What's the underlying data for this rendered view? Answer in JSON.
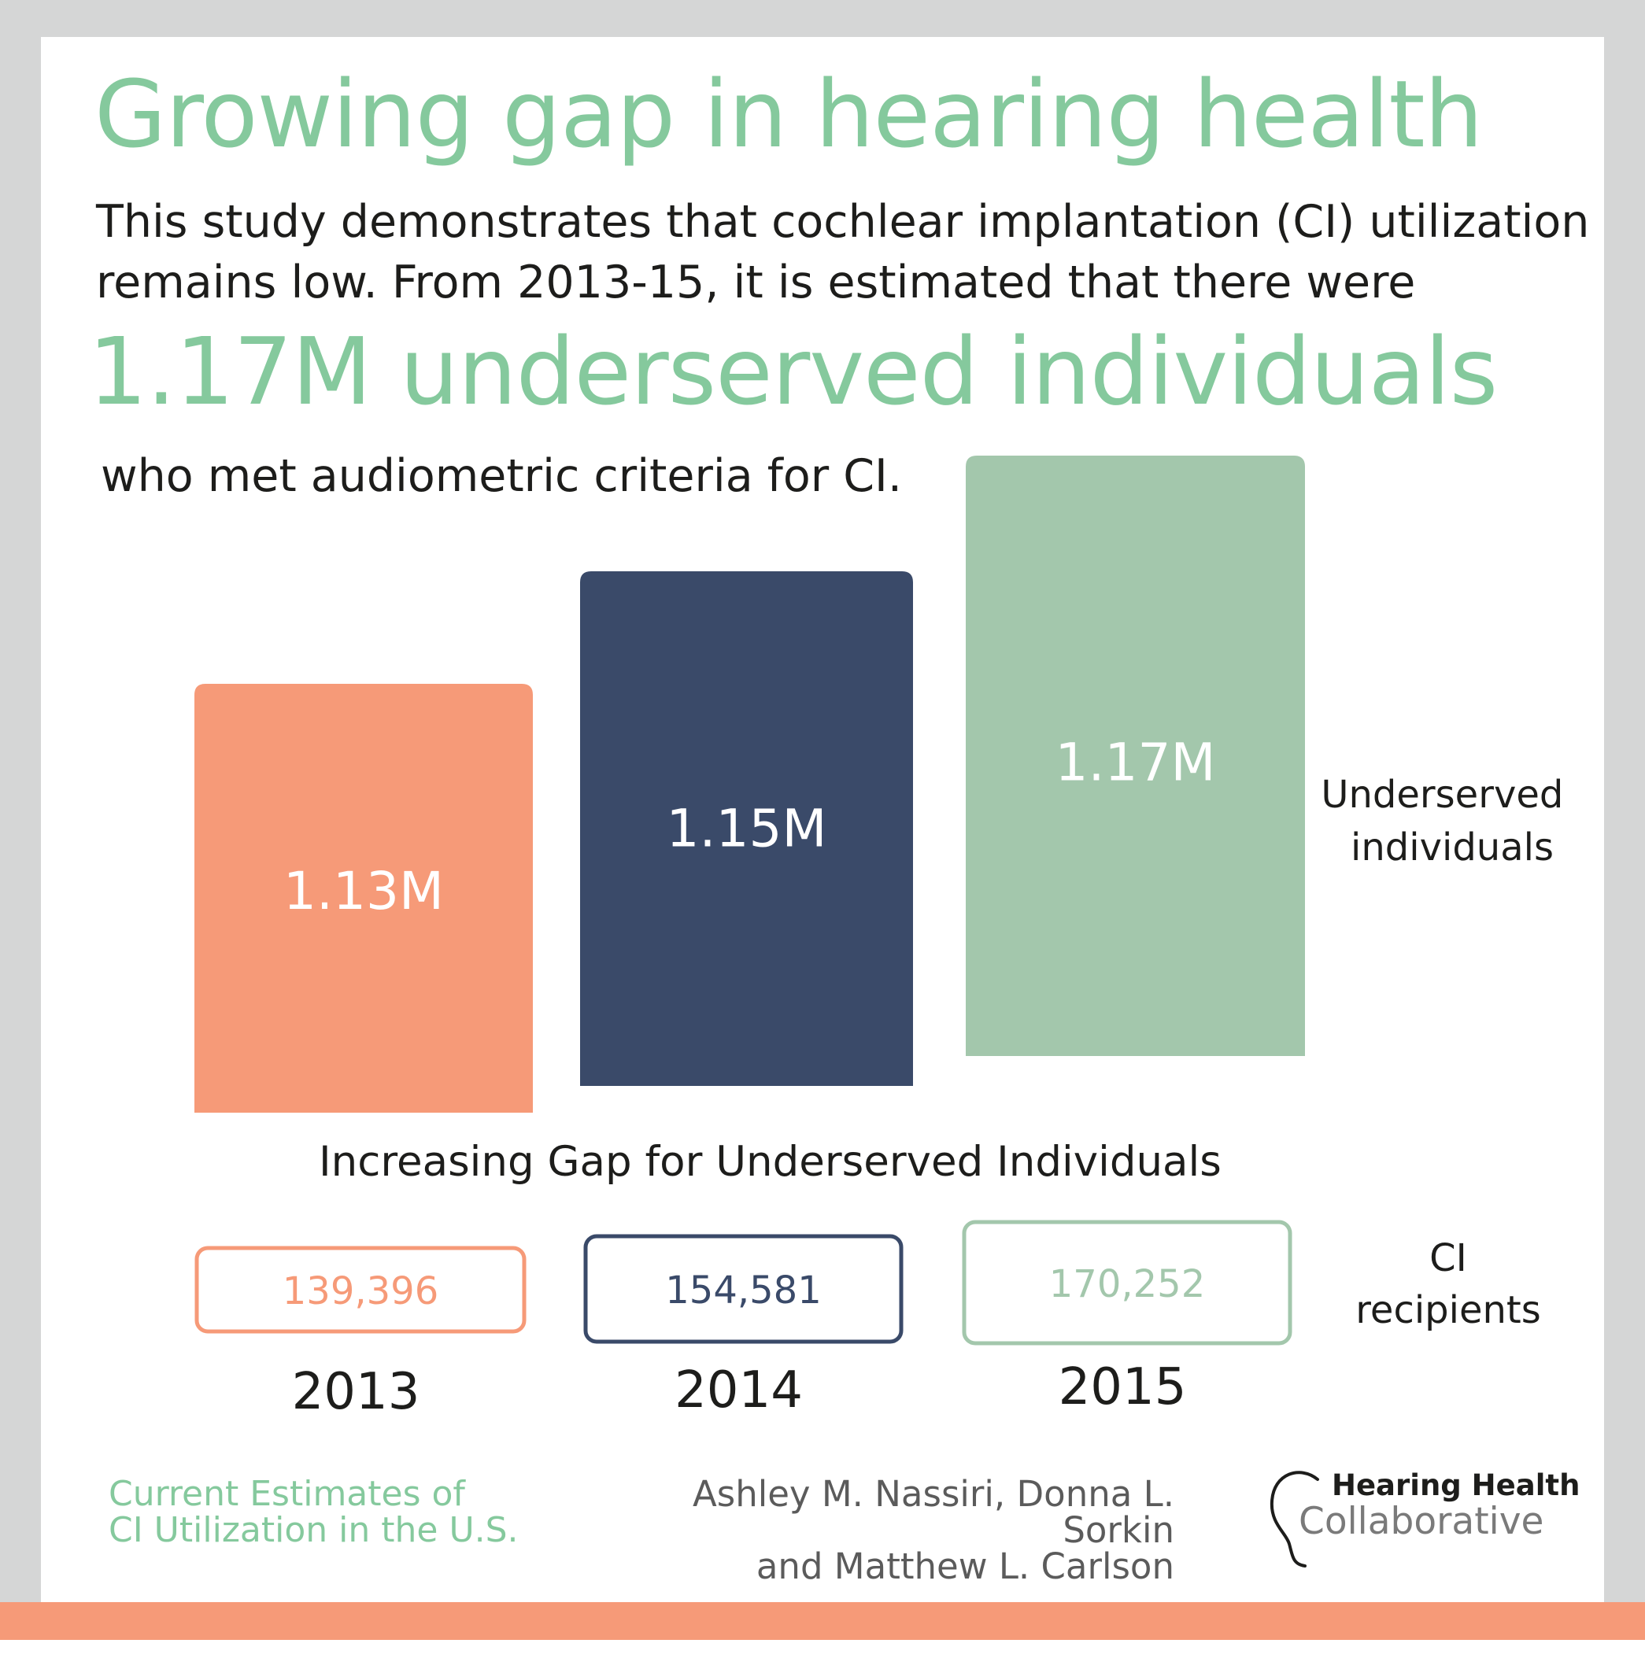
{
  "headline": "Growing gap in hearing health",
  "intro": "This study demonstrates that cochlear implantation (CI) utilization remains low. From 2013-15, it is estimated that there were",
  "big_stat": "1.17M underserved individuals",
  "criteria_text": "who met audiometric criteria  for CI.",
  "footer": {
    "title_line1": "Current Estimates of",
    "title_line2": "CI Utilization in the U.S.",
    "authors_line1": "Ashley M. Nassiri, Donna L. Sorkin",
    "authors_line2": "and Matthew L. Carlson",
    "logo_line1": "Hearing Health",
    "logo_line2": "Collaborative",
    "logo_icon": "ear-outline-icon"
  },
  "colors": {
    "accent_green": "#85c99d",
    "orange": "#f69a78",
    "navy": "#3a4a69",
    "sage": "#a3c7ac",
    "background": "#d5d6d6"
  },
  "chart_data": {
    "type": "bar",
    "title": "Increasing Gap for Underserved Individuals",
    "categories": [
      "2013",
      "2014",
      "2015"
    ],
    "series": [
      {
        "name": "Underserved individuals",
        "name_lines": [
          "Underserved",
          "individuals"
        ],
        "values": [
          1130000,
          1150000,
          1170000
        ],
        "labels": [
          "1.13M",
          "1.15M",
          "1.17M"
        ],
        "colors": [
          "#f69a78",
          "#3a4a69",
          "#a3c7ac"
        ]
      },
      {
        "name": "CI recipients",
        "name_lines": [
          "CI",
          "recipients"
        ],
        "values": [
          139396,
          154581,
          170252
        ],
        "labels": [
          "139,396",
          "154,581",
          "170,252"
        ],
        "colors": [
          "#f69a78",
          "#3a4a69",
          "#a3c7ac"
        ]
      }
    ],
    "grid": false,
    "legend": "right"
  }
}
